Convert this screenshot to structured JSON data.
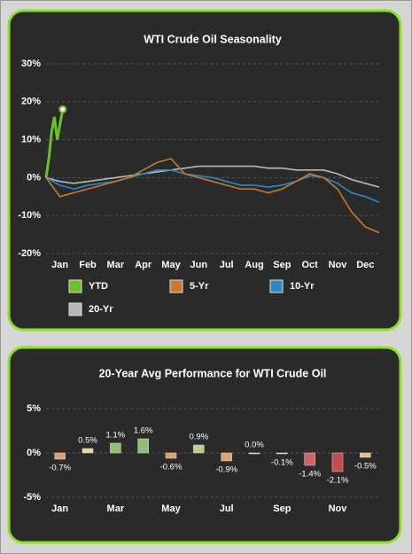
{
  "chart_data": [
    {
      "type": "line",
      "title": "WTI Crude Oil Seasonality",
      "x": [
        0,
        0.5,
        1,
        1.5,
        2,
        2.5,
        3,
        3.5,
        4,
        4.5,
        5,
        5.5,
        6,
        6.5,
        7,
        7.5,
        8,
        8.5,
        9,
        9.5,
        10,
        10.5,
        11,
        11.5,
        12
      ],
      "xlim": [
        0,
        12
      ],
      "xticks": [
        {
          "value": 0.5,
          "label": "Jan"
        },
        {
          "value": 1.5,
          "label": "Feb"
        },
        {
          "value": 2.5,
          "label": "Mar"
        },
        {
          "value": 3.5,
          "label": "Apr"
        },
        {
          "value": 4.5,
          "label": "May"
        },
        {
          "value": 5.5,
          "label": "Jun"
        },
        {
          "value": 6.5,
          "label": "Jul"
        },
        {
          "value": 7.5,
          "label": "Aug"
        },
        {
          "value": 8.5,
          "label": "Sep"
        },
        {
          "value": 9.5,
          "label": "Oct"
        },
        {
          "value": 10.5,
          "label": "Nov"
        },
        {
          "value": 11.5,
          "label": "Dec"
        }
      ],
      "ylim": [
        -20,
        30
      ],
      "yticks": [
        {
          "value": -20,
          "label": "-20%"
        },
        {
          "value": -10,
          "label": "-10%"
        },
        {
          "value": 0,
          "label": "0%"
        },
        {
          "value": 10,
          "label": "10%"
        },
        {
          "value": 20,
          "label": "20%"
        },
        {
          "value": 30,
          "label": "30%"
        }
      ],
      "grid": true,
      "series": [
        {
          "name": "YTD",
          "color": "#6fbf2a",
          "x": [
            0,
            0.1,
            0.2,
            0.3,
            0.4,
            0.5,
            0.6
          ],
          "values": [
            0,
            5,
            12,
            16,
            10,
            14,
            18
          ]
        },
        {
          "name": "5-Yr",
          "color": "#c77a30",
          "values": [
            0,
            -5,
            -4,
            -3,
            -2,
            -1,
            0,
            2,
            4,
            5,
            1,
            0,
            -1,
            -2,
            -3,
            -3,
            -4,
            -3,
            -1,
            1,
            0,
            -3,
            -9,
            -13,
            -14.5
          ]
        },
        {
          "name": "10-Yr",
          "color": "#2f86c0",
          "values": [
            0,
            -2,
            -3,
            -2,
            -1.5,
            -1,
            0,
            1,
            2,
            2,
            1,
            0.5,
            0,
            -1,
            -2,
            -2,
            -2.5,
            -2,
            -1,
            0.5,
            0,
            -1.5,
            -4,
            -5,
            -6.5
          ]
        },
        {
          "name": "20-Yr",
          "color": "#b8b8b8",
          "values": [
            0,
            -1,
            -1.5,
            -1,
            -0.5,
            0,
            0.5,
            1,
            1.5,
            2,
            2.5,
            3,
            3,
            3,
            3,
            3,
            2.5,
            2.5,
            2,
            2,
            2,
            1,
            -0.5,
            -1.5,
            -2.5
          ]
        }
      ]
    },
    {
      "type": "bar",
      "title": "20-Year Avg Performance for WTI Crude Oil",
      "categories": [
        "Jan",
        null,
        "Mar",
        null,
        "May",
        null,
        "Jul",
        null,
        "Sep",
        null,
        "Nov",
        null
      ],
      "values": [
        -0.7,
        0.5,
        1.1,
        1.6,
        -0.6,
        0.9,
        -0.9,
        0.0,
        -0.1,
        -1.4,
        -2.1,
        -0.5
      ],
      "value_labels": [
        "-0.7%",
        "0.5%",
        "1.1%",
        "1.6%",
        "-0.6%",
        "0.9%",
        "-0.9%",
        "0.0%",
        "-0.1%",
        "-1.4%",
        "-2.1%",
        "-0.5%"
      ],
      "colors": [
        "#d9a06e",
        "#e6dc9a",
        "#8fbf72",
        "#8fbf72",
        "#d9a06e",
        "#b5cf86",
        "#dba36e",
        "#e6dc9a",
        "#e6dc9a",
        "#cf6262",
        "#c84a4a",
        "#e2c585"
      ],
      "ylim": [
        -5,
        5
      ],
      "yticks": [
        {
          "value": -5,
          "label": "-5%"
        },
        {
          "value": 0,
          "label": "0%"
        },
        {
          "value": 5,
          "label": "5%"
        }
      ],
      "grid": true
    }
  ]
}
